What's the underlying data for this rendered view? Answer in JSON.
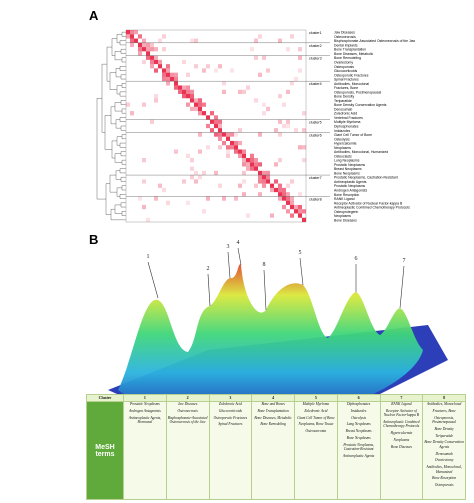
{
  "panels": {
    "a_label": "A",
    "b_label": "B"
  },
  "heatmap": {
    "clusters": [
      "cluster1",
      "cluster2",
      "cluster3",
      "cluster4",
      "cluster5",
      "cluster6",
      "cluster7",
      "cluster8"
    ],
    "terms": [
      "Jaw Diseases",
      "Osteonecrosis",
      "Bisphosphonate-Associated Osteonecrosis of the Jaw",
      "Dental Implants",
      "Bone Transplantation",
      "Bone Diseases, Metabolic",
      "Bone Remodeling",
      "Ovariectomy",
      "Osteoporosis",
      "Glucocorticoids",
      "Osteoporotic Fractures",
      "Spinal Fractures",
      "Antibodies, Monoclonal",
      "Fractures, Bone",
      "Osteoporosis, Postmenopausal",
      "Bone Density",
      "Teriparatide",
      "Bone Density Conservation Agents",
      "Denosumab",
      "Zoledronic Acid",
      "Vertebral Fractures",
      "Multiple Myeloma",
      "Diphosphonates",
      "Imidazoles",
      "Giant Cell Tumor of Bone",
      "Osteolysis",
      "Hypercalcemia",
      "Neoplasms",
      "Antibodies, Monoclonal, Humanized",
      "Osteoclasts",
      "Lung Neoplasms",
      "Prostatic Neoplasms",
      "Breast Neoplasms",
      "Bone Neoplasms",
      "Prostatic Neoplasms, Castration-Resistant",
      "Antineoplastic Agents",
      "Prostatic Neoplasms",
      "Androgen Antagonists",
      "Bone Resorption",
      "RANK Ligand",
      "Receptor Activator of Nuclear Factor-kappa B",
      "Antineoplastic Combined Chemotherapy Protocols",
      "Osteoprotegerin",
      "Neoplasms",
      "Bone Diseases"
    ]
  },
  "landscape": {
    "peak_labels": [
      "1",
      "2",
      "3",
      "4",
      "5",
      "6",
      "7",
      "8"
    ]
  },
  "table": {
    "header": [
      "Cluster",
      "1",
      "2",
      "3",
      "4",
      "5",
      "6",
      "7",
      "8"
    ],
    "row_label": "MeSH terms",
    "columns": [
      [
        "Prostatic Neoplasms",
        "Androgen Antagonists",
        "Antineoplastic Agents, Hormonal"
      ],
      [
        "Jaw Diseases",
        "Osteonecrosis",
        "Bisphosphonate-Associated Osteonecrosis of the Jaw"
      ],
      [
        "Zoledronic Acid",
        "Glucocorticoids",
        "Osteoporotic Fractures",
        "Spinal Fractures"
      ],
      [
        "Bone and Bones",
        "Bone Transplantation",
        "Bone Diseases, Metabolic",
        "Bone Remodeling"
      ],
      [
        "Multiple Myeloma",
        "Zoledronic Acid",
        "Giant Cell Tumor of Bone",
        "Neoplasms, Bone Tissue",
        "Osteosarcoma"
      ],
      [
        "Diphosphonates",
        "Imidazoles",
        "Osteolysis",
        "Lung Neoplasms",
        "Breast Neoplasms",
        "Bone Neoplasms",
        "Prostatic Neoplasms, Castration-Resistant",
        "Antineoplastic Agents"
      ],
      [
        "RANK Ligand",
        "Receptor Activator of Nuclear Factor-kappa B",
        "Antineoplastic Combined Chemotherapy Protocols",
        "Hypercalcemia",
        "Neoplasms",
        "Bone Diseases"
      ],
      [
        "Antibodies, Monoclonal",
        "Fractures, Bone",
        "Osteoporosis, Postmenopausal",
        "Bone Density",
        "Teriparatide",
        "Bone Density Conservation Agents",
        "Denosumab",
        "Ovariectomy",
        "Antibodies, Monoclonal, Humanized",
        "Bone Resorption",
        "Osteoporosis"
      ]
    ]
  },
  "colors": {
    "heat": "#e8284a",
    "table_label_bg": "#5faa3a"
  }
}
